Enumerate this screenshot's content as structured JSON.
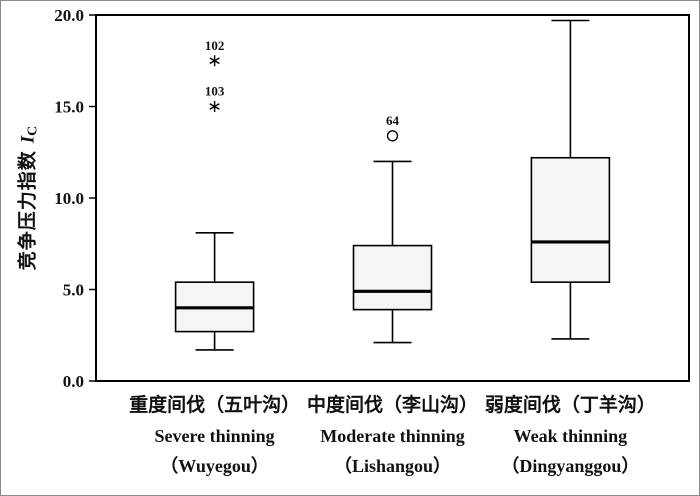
{
  "chart_data": {
    "type": "boxplot",
    "title": "",
    "ylabel_cn": "竞争压力指数",
    "ylabel_var": "I",
    "ylabel_sub": "C",
    "ylim": [
      0,
      20
    ],
    "yticks": [
      0,
      5,
      10,
      15,
      20
    ],
    "ytick_labels": [
      "0.0",
      "5.0",
      "10.0",
      "15.0",
      "20.0"
    ],
    "grid": false,
    "group_positions": [
      0.2,
      0.5,
      0.8
    ],
    "colors": {
      "box_fill": "#f5f5f5",
      "stroke": "#000000"
    },
    "groups": [
      {
        "label_cn": "重度间伐（五叶沟）",
        "label_en": "Severe thinning",
        "label_site": "（Wuyegou）",
        "whisker_low": 1.7,
        "q1": 2.7,
        "median": 4.0,
        "q3": 5.4,
        "whisker_high": 8.1,
        "outliers": [
          {
            "value": 17.5,
            "label": "102",
            "marker": "star"
          },
          {
            "value": 15.0,
            "label": "103",
            "marker": "star"
          }
        ]
      },
      {
        "label_cn": "中度间伐（李山沟）",
        "label_en": "Moderate thinning",
        "label_site": "（Lishangou）",
        "whisker_low": 2.1,
        "q1": 3.9,
        "median": 4.9,
        "q3": 7.4,
        "whisker_high": 12.0,
        "outliers": [
          {
            "value": 13.4,
            "label": "64",
            "marker": "circle"
          }
        ]
      },
      {
        "label_cn": "弱度间伐（丁羊沟）",
        "label_en": "Weak thinning",
        "label_site": "（Dingyanggou）",
        "whisker_low": 2.3,
        "q1": 5.4,
        "median": 7.6,
        "q3": 12.2,
        "whisker_high": 19.7,
        "outliers": []
      }
    ]
  }
}
